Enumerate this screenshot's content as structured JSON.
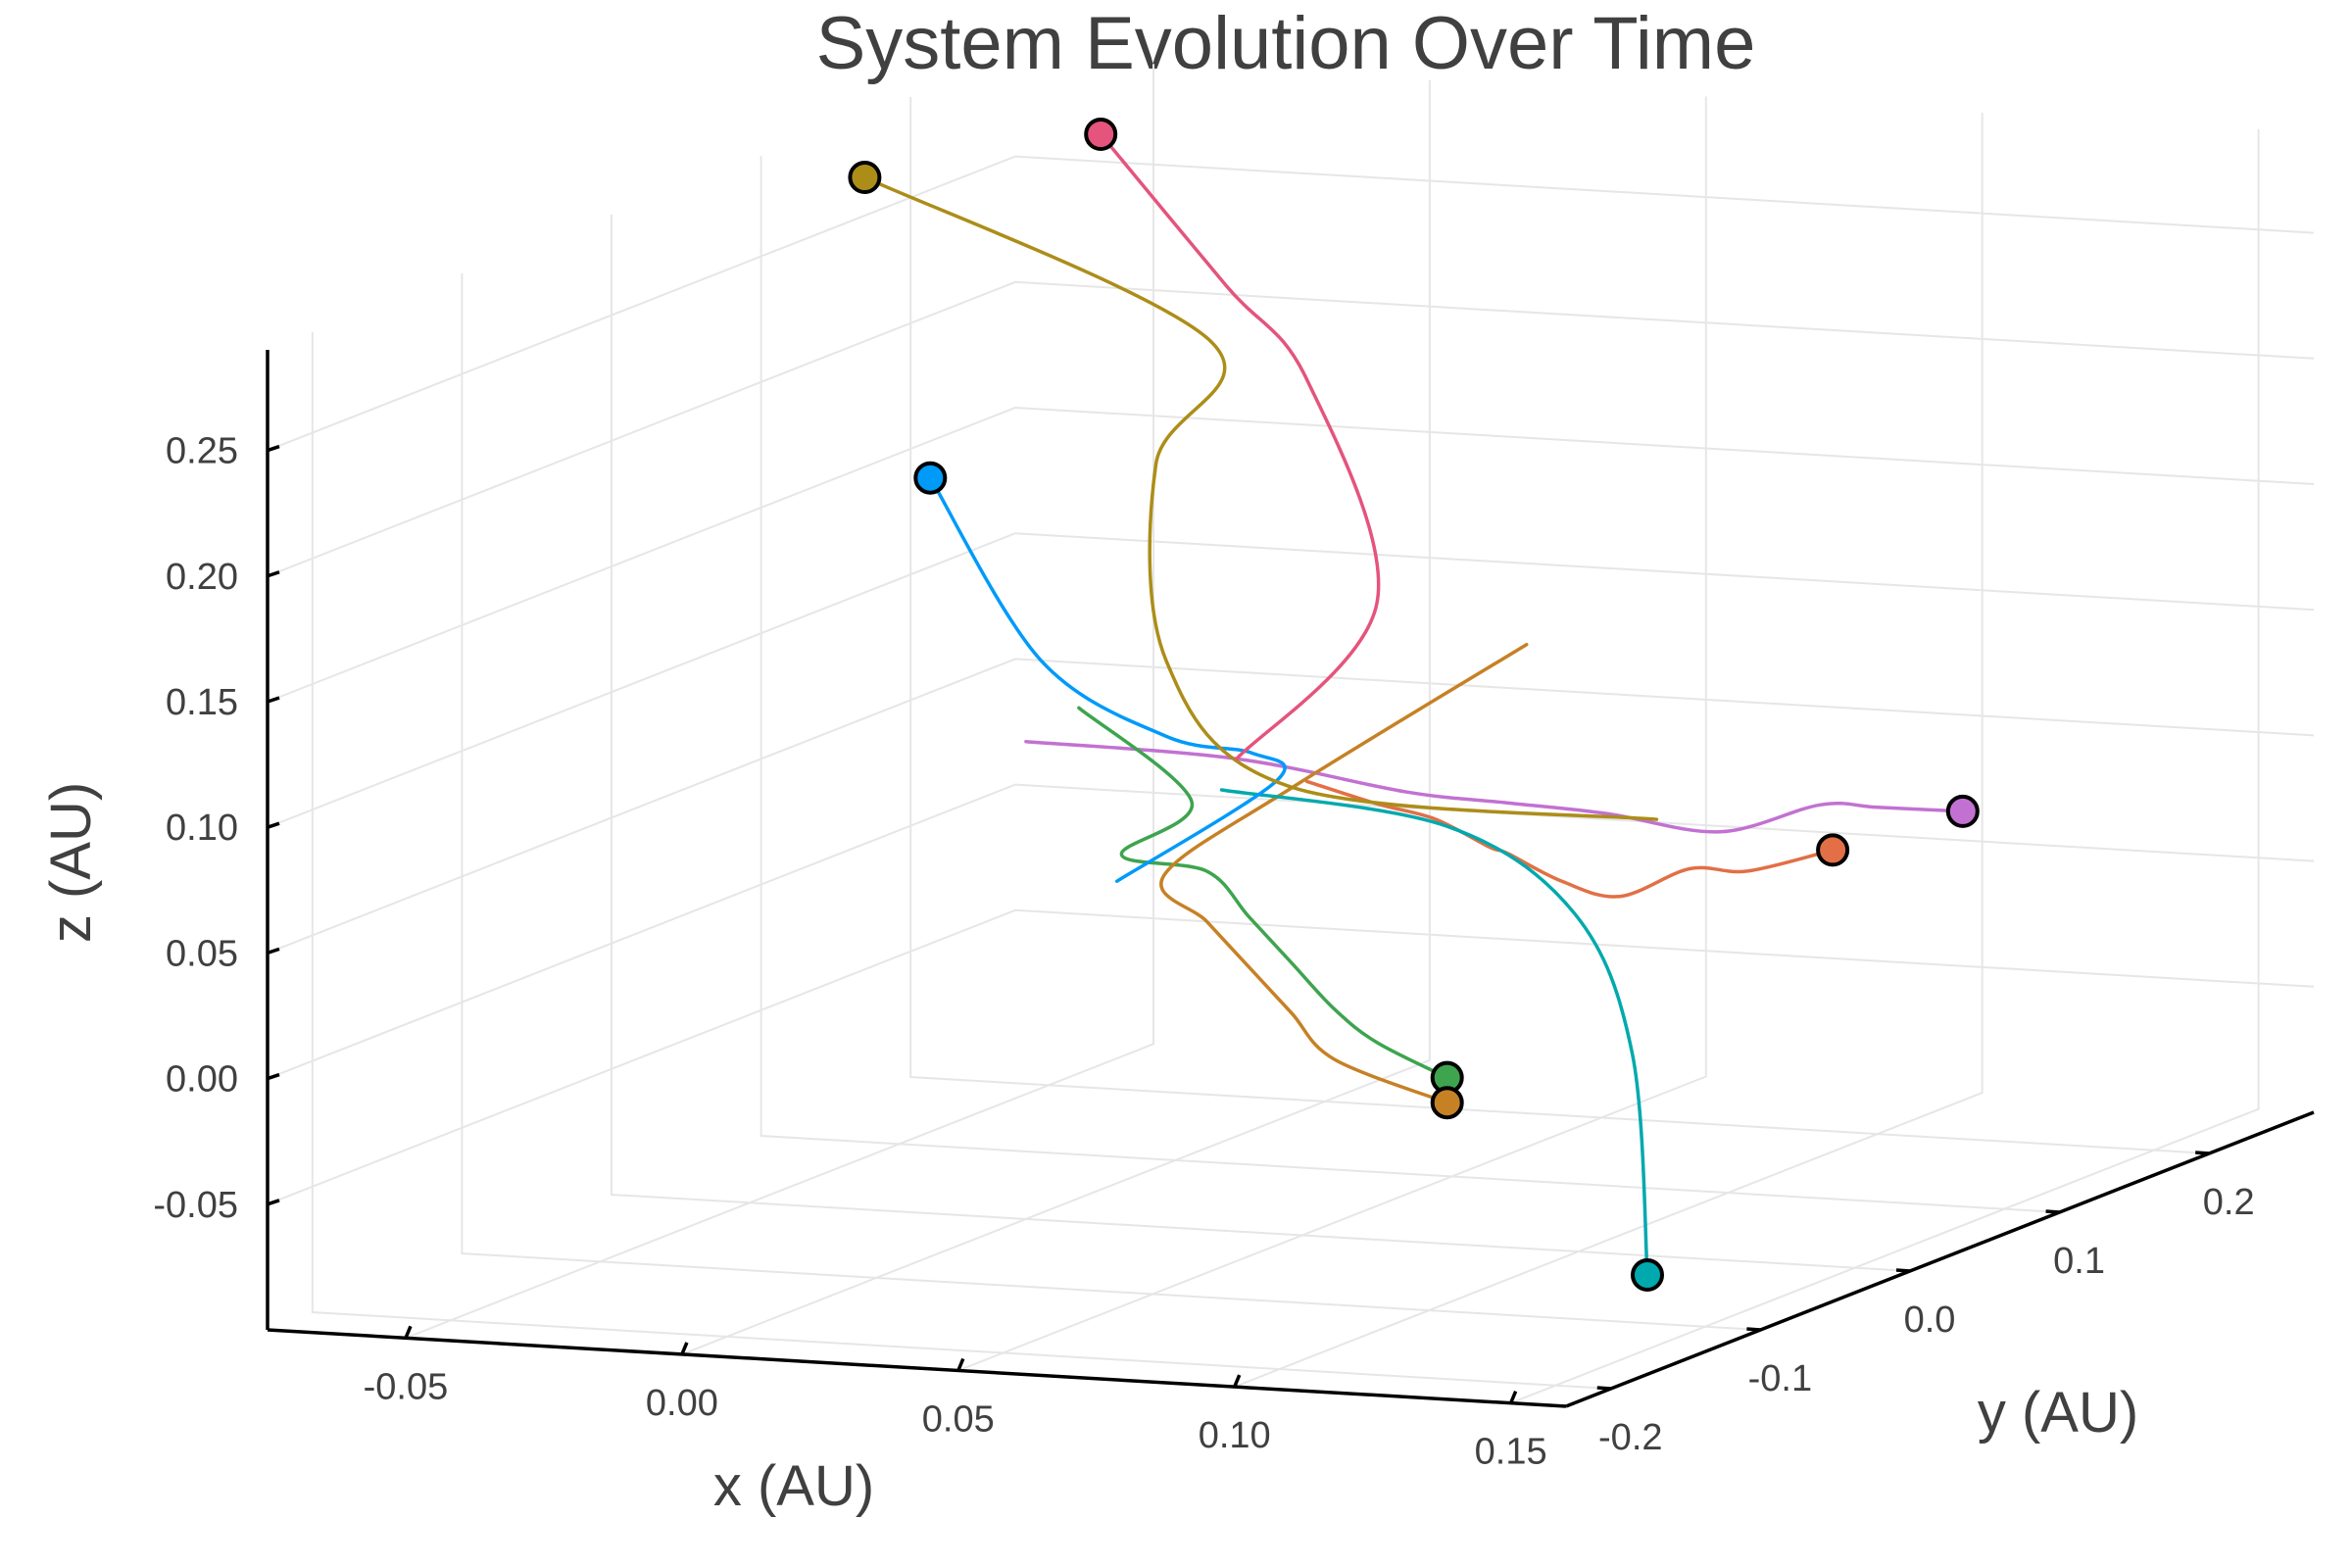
{
  "chart_data": {
    "type": "line",
    "projection": "3d",
    "title": "System Evolution Over Time",
    "xlabel": "x (AU)",
    "ylabel": "y (AU)",
    "zlabel": "z (AU)",
    "xlim": [
      -0.075,
      0.16
    ],
    "ylim": [
      -0.23,
      0.27
    ],
    "zlim": [
      -0.1,
      0.29
    ],
    "xticks": [
      "-0.05",
      "0.00",
      "0.05",
      "0.10",
      "0.15"
    ],
    "xtick_values": [
      -0.05,
      0.0,
      0.05,
      0.1,
      0.15
    ],
    "yticks": [
      "-0.2",
      "-0.1",
      "0.0",
      "0.1",
      "0.2"
    ],
    "ytick_values": [
      -0.2,
      -0.1,
      0.0,
      0.1,
      0.2
    ],
    "zticks": [
      "-0.05",
      "0.00",
      "0.05",
      "0.10",
      "0.15",
      "0.20",
      "0.25"
    ],
    "ztick_values": [
      -0.05,
      0.0,
      0.05,
      0.1,
      0.15,
      0.2,
      0.25
    ],
    "grid": true,
    "legend": "none",
    "series": [
      {
        "color": "#e26f46",
        "final": [
          0.1,
          0.17,
          0.02
        ],
        "trail": [
          [
            0.04,
            0.04,
            0.07
          ],
          [
            0.05,
            0.05,
            0.06
          ],
          [
            0.055,
            0.07,
            0.05
          ],
          [
            0.065,
            0.07,
            0.04
          ],
          [
            0.06,
            0.1,
            0.03
          ],
          [
            0.07,
            0.1,
            0.02
          ],
          [
            0.075,
            0.12,
            0.01
          ],
          [
            0.085,
            0.13,
            0.02
          ],
          [
            0.09,
            0.15,
            0.015
          ],
          [
            0.1,
            0.17,
            0.02
          ]
        ]
      },
      {
        "color": "#c271d2",
        "final": [
          0.11,
          0.22,
          0.025
        ],
        "trail": [
          [
            0.0,
            0.0,
            0.09
          ],
          [
            0.03,
            0.03,
            0.08
          ],
          [
            0.05,
            0.07,
            0.06
          ],
          [
            0.06,
            0.1,
            0.05
          ],
          [
            0.07,
            0.13,
            0.04
          ],
          [
            0.085,
            0.15,
            0.03
          ],
          [
            0.095,
            0.18,
            0.035
          ],
          [
            0.1,
            0.2,
            0.03
          ],
          [
            0.11,
            0.22,
            0.025
          ]
        ]
      },
      {
        "color": "#3ea44e",
        "final": [
          0.06,
          0.06,
          -0.05
        ],
        "trail": [
          [
            0.015,
            -0.02,
            0.11
          ],
          [
            0.03,
            0.0,
            0.07
          ],
          [
            0.02,
            -0.01,
            0.05
          ],
          [
            0.03,
            0.01,
            0.04
          ],
          [
            0.035,
            0.02,
            0.02
          ],
          [
            0.04,
            0.03,
            0.0
          ],
          [
            0.045,
            0.04,
            -0.02
          ],
          [
            0.05,
            0.05,
            -0.035
          ],
          [
            0.06,
            0.06,
            -0.05
          ]
        ]
      },
      {
        "color": "#c68125",
        "final": [
          0.06,
          0.06,
          -0.06
        ],
        "trail": [
          [
            0.05,
            0.15,
            0.1
          ],
          [
            0.035,
            0.05,
            0.065
          ],
          [
            0.025,
            0.0,
            0.04
          ],
          [
            0.03,
            0.01,
            0.02
          ],
          [
            0.035,
            0.02,
            0.0
          ],
          [
            0.04,
            0.03,
            -0.02
          ],
          [
            0.045,
            0.04,
            -0.04
          ],
          [
            0.06,
            0.06,
            -0.06
          ]
        ]
      },
      {
        "color": "#00a9ad",
        "final": [
          0.08,
          0.12,
          -0.14
        ],
        "trail": [
          [
            0.03,
            0.02,
            0.07
          ],
          [
            0.06,
            0.06,
            0.05
          ],
          [
            0.075,
            0.09,
            0.01
          ],
          [
            0.08,
            0.11,
            -0.05
          ],
          [
            0.08,
            0.12,
            -0.14
          ]
        ]
      },
      {
        "color": "#009af9",
        "final": [
          -0.02,
          0.01,
          0.19
        ],
        "trail": [
          [
            0.03,
            -0.05,
            0.05
          ],
          [
            0.04,
            0.02,
            0.075
          ],
          [
            0.03,
            0.04,
            0.08
          ],
          [
            0.02,
            0.02,
            0.09
          ],
          [
            0.0,
            0.01,
            0.12
          ],
          [
            -0.02,
            0.01,
            0.19
          ]
        ]
      },
      {
        "color": "#ac8d18",
        "final": [
          -0.04,
          0.04,
          0.3
        ],
        "trail": [
          [
            0.06,
            0.2,
            0.02
          ],
          [
            0.04,
            0.03,
            0.07
          ],
          [
            0.02,
            0.02,
            0.12
          ],
          [
            0.01,
            0.05,
            0.19
          ],
          [
            0.02,
            0.05,
            0.24
          ],
          [
            -0.04,
            0.04,
            0.3
          ]
        ]
      },
      {
        "color": "#e4547d",
        "final": [
          0.0,
          0.05,
          0.32
        ],
        "trail": [
          [
            0.03,
            0.03,
            0.08
          ],
          [
            0.05,
            0.05,
            0.14
          ],
          [
            0.04,
            0.04,
            0.23
          ],
          [
            0.02,
            0.06,
            0.26
          ],
          [
            0.0,
            0.05,
            0.32
          ]
        ]
      }
    ]
  }
}
